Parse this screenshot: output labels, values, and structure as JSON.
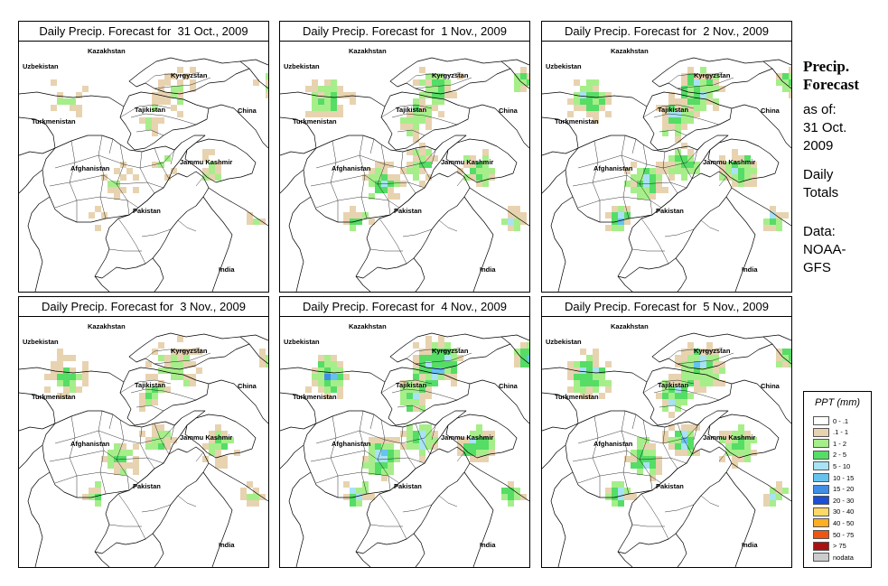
{
  "panels": [
    {
      "title": "Daily Precip. Forecast for  31 Oct., 2009",
      "seed": 11,
      "wet": 0.55
    },
    {
      "title": "Daily Precip. Forecast for  1 Nov., 2009",
      "seed": 23,
      "wet": 1.0
    },
    {
      "title": "Daily Precip. Forecast for  2 Nov., 2009",
      "seed": 37,
      "wet": 1.2
    },
    {
      "title": "Daily Precip. Forecast for  3 Nov., 2009",
      "seed": 41,
      "wet": 0.8
    },
    {
      "title": "Daily Precip. Forecast for  4 Nov., 2009",
      "seed": 53,
      "wet": 1.35
    },
    {
      "title": "Daily Precip. Forecast for  5 Nov., 2009",
      "seed": 67,
      "wet": 1.25
    }
  ],
  "map_labels": {
    "kazakhstan": "Kazakhstan",
    "uzbekistan": "Uzbekistan",
    "kyrgyzstan": "Kyrgyzstan",
    "tajikistan": "Tajikistan",
    "turkmenistan": "Turkmenistan",
    "china": "China",
    "afghanistan": "Afghanistan",
    "jammu_kashmir": "Jammu Kashmir",
    "pakistan": "Pakistan",
    "india": "India"
  },
  "side": {
    "title_line1": "Precip.",
    "title_line2": "Forecast",
    "asof_line1": "as of:",
    "asof_line2": "31 Oct.",
    "asof_line3": "2009",
    "totals_line1": "Daily",
    "totals_line2": "Totals",
    "data_line1": "Data:",
    "data_line2": "NOAA-",
    "data_line3": "GFS"
  },
  "legend": {
    "title": "PPT (mm)",
    "items": [
      {
        "label": "0 - .1",
        "color": "#ffffff"
      },
      {
        "label": ".1 - 1",
        "color": "#e8d3b0"
      },
      {
        "label": "1 - 2",
        "color": "#a6ee8a"
      },
      {
        "label": "2 - 5",
        "color": "#55dd66"
      },
      {
        "label": "5 - 10",
        "color": "#a8e2f4"
      },
      {
        "label": "10 - 15",
        "color": "#66c3ee"
      },
      {
        "label": "15 - 20",
        "color": "#3f8fe6"
      },
      {
        "label": "20 - 30",
        "color": "#1a4fd6"
      },
      {
        "label": "30 - 40",
        "color": "#ffd966"
      },
      {
        "label": "40 - 50",
        "color": "#ffae22"
      },
      {
        "label": "50 - 75",
        "color": "#ee5511"
      },
      {
        "label": "> 75",
        "color": "#aa1111"
      },
      {
        "label": "nodata",
        "color": "#cccccc"
      }
    ]
  }
}
